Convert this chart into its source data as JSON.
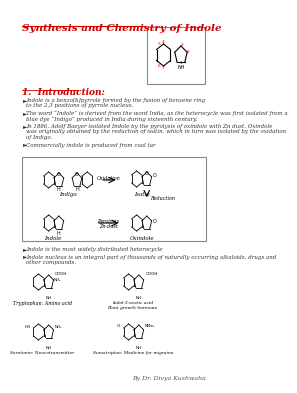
{
  "title": "Synthesis and Chemistry of Indole",
  "section": "1.  Introduction:",
  "bullets": [
    "Indole is a benzo[b]pyrrole formed by the fusion of benzene ring\nto the 2,3 positions of pyrrole nucleus.",
    "The word “Indole” is derived from the word India, as the heterocycle was first isolated from a\nblue dye “Indigo” produced in India during sixteenth century.",
    "In 1886, Adolf Baeyer isolated Indole by the pyrolysis of oxindole with Zn dust. Oxindole\nwas originally obtained by the reduction of isatin, which in turn was isolated by the oxidation\nof Indigo.",
    "Commercially indole is produced from coal tar"
  ],
  "bullets2": [
    "Indole is the most widely distributed heterocycle",
    "Indole nucleus is an integral part of thousands of naturally occurring alkaloids, drugs and\nother compounds."
  ],
  "footer": "By Dr. Divya Kushwaha",
  "bg_color": "#ffffff",
  "title_color": "#cc0000",
  "section_color": "#cc0000",
  "text_color": "#333333"
}
